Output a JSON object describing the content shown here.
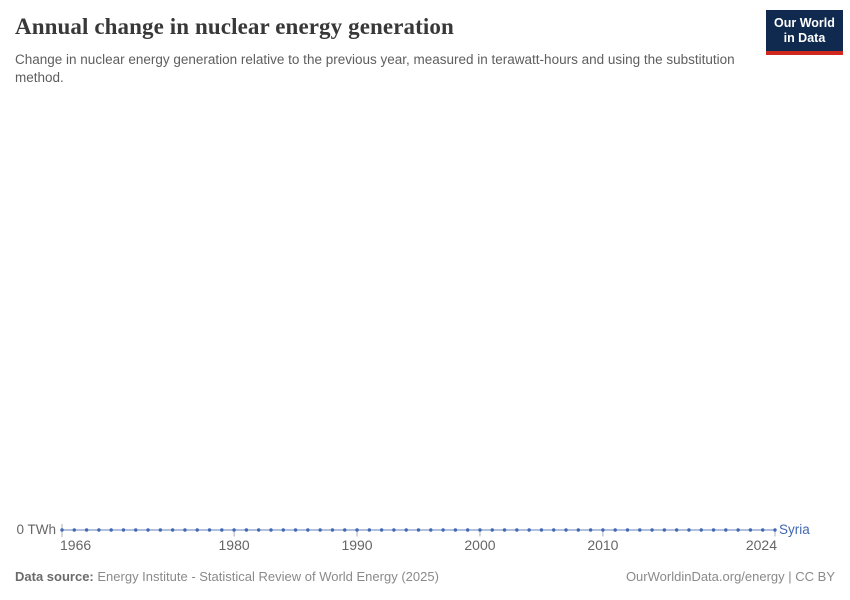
{
  "header": {
    "title": "Annual change in nuclear energy generation",
    "subtitle": "Change in nuclear energy generation relative to the previous year, measured in terawatt-hours and using the substitution method.",
    "logo": {
      "line1": "Our World",
      "line2": "in Data"
    }
  },
  "footer": {
    "source_label": "Data source:",
    "source_text": "Energy Institute - Statistical Review of World Energy (2025)",
    "license_text": "OurWorldinData.org/energy | CC BY"
  },
  "colors": {
    "series_blue": "#4268B1",
    "logo_navy": "#10294F",
    "logo_red": "#D0281F",
    "axis_text": "#666666",
    "tick_mark": "#A8AFB8"
  },
  "chart_data": {
    "type": "line",
    "title": "Annual change in nuclear energy generation",
    "unit": "TWh",
    "xlim": [
      1966,
      2024
    ],
    "x_ticks": [
      1966,
      1980,
      1990,
      2000,
      2010,
      2024
    ],
    "y_zero_label": "0 TWh",
    "grid": false,
    "legend_position": "end-of-line",
    "x": [
      1966,
      1967,
      1968,
      1969,
      1970,
      1971,
      1972,
      1973,
      1974,
      1975,
      1976,
      1977,
      1978,
      1979,
      1980,
      1981,
      1982,
      1983,
      1984,
      1985,
      1986,
      1987,
      1988,
      1989,
      1990,
      1991,
      1992,
      1993,
      1994,
      1995,
      1996,
      1997,
      1998,
      1999,
      2000,
      2001,
      2002,
      2003,
      2004,
      2005,
      2006,
      2007,
      2008,
      2009,
      2010,
      2011,
      2012,
      2013,
      2014,
      2015,
      2016,
      2017,
      2018,
      2019,
      2020,
      2021,
      2022,
      2023,
      2024
    ],
    "series": [
      {
        "name": "Syria",
        "color": "#4268B1",
        "values": [
          0,
          0,
          0,
          0,
          0,
          0,
          0,
          0,
          0,
          0,
          0,
          0,
          0,
          0,
          0,
          0,
          0,
          0,
          0,
          0,
          0,
          0,
          0,
          0,
          0,
          0,
          0,
          0,
          0,
          0,
          0,
          0,
          0,
          0,
          0,
          0,
          0,
          0,
          0,
          0,
          0,
          0,
          0,
          0,
          0,
          0,
          0,
          0,
          0,
          0,
          0,
          0,
          0,
          0,
          0,
          0,
          0,
          0,
          0
        ]
      }
    ]
  }
}
